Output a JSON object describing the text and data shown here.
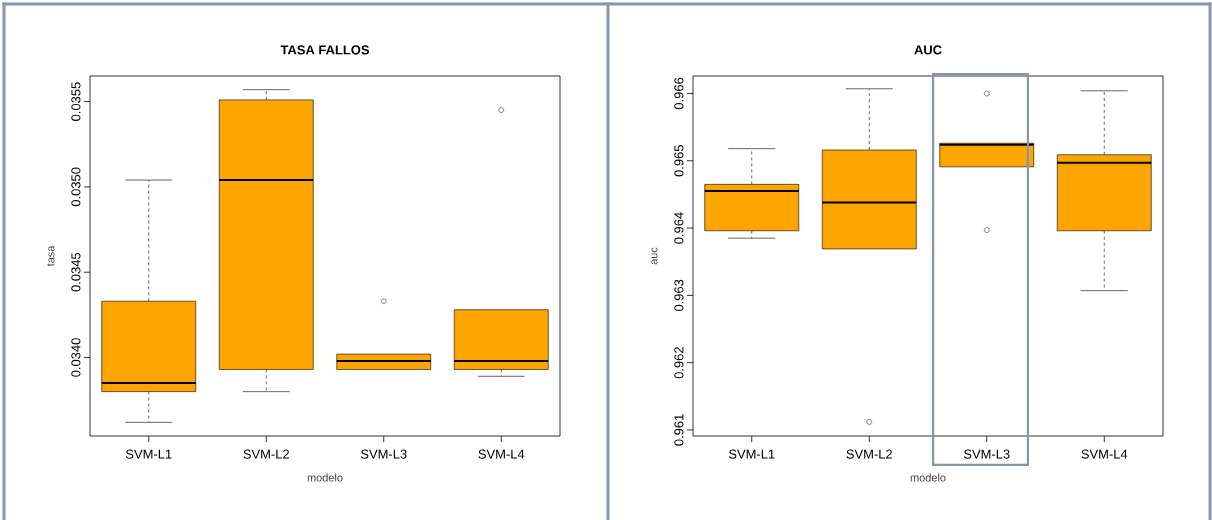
{
  "chart_data": [
    {
      "type": "box",
      "title": "TASA FALLOS",
      "xlabel": "modelo",
      "ylabel": "tasa",
      "categories": [
        "SVM-L1",
        "SVM-L2",
        "SVM-L3",
        "SVM-L4"
      ],
      "color": "#ffa500",
      "ylim": [
        0.03354,
        0.03565
      ],
      "yticks": [
        {
          "value": 0.034,
          "label": "0.0340"
        },
        {
          "value": 0.0345,
          "label": "0.0345"
        },
        {
          "value": 0.035,
          "label": "0.0350"
        },
        {
          "value": 0.0355,
          "label": "0.0355"
        }
      ],
      "boxes": [
        {
          "low": 0.03362,
          "q1": 0.0338,
          "median": 0.03385,
          "q3": 0.03433,
          "high": 0.03504
        },
        {
          "low": 0.0338,
          "q1": 0.03393,
          "median": 0.03504,
          "q3": 0.03551,
          "high": 0.03557
        },
        {
          "low": 0.03393,
          "q1": 0.03393,
          "median": 0.03398,
          "q3": 0.03402,
          "high": 0.03402,
          "outliers": [
            0.03433
          ]
        },
        {
          "low": 0.03389,
          "q1": 0.03393,
          "median": 0.03398,
          "q3": 0.03428,
          "high": 0.03428,
          "outliers": [
            0.03545
          ]
        }
      ]
    },
    {
      "type": "box",
      "title": "AUC",
      "xlabel": "modelo",
      "ylabel": "auc",
      "categories": [
        "SVM-L1",
        "SVM-L2",
        "SVM-L3",
        "SVM-L4"
      ],
      "color": "#ffa500",
      "ylim": [
        0.96091,
        0.96626
      ],
      "yticks": [
        0.961,
        0.962,
        0.963,
        0.964,
        0.965,
        0.966
      ],
      "boxes": [
        {
          "low": 0.96385,
          "q1": 0.96396,
          "median": 0.96455,
          "q3": 0.96465,
          "high": 0.96518
        },
        {
          "low": 0.96369,
          "q1": 0.96369,
          "median": 0.96438,
          "q3": 0.96516,
          "high": 0.96607,
          "outliers": [
            0.96112
          ]
        },
        {
          "low": 0.96491,
          "q1": 0.96491,
          "median": 0.96524,
          "q3": 0.96526,
          "high": 0.96526,
          "outliers": [
            0.966,
            0.96397
          ]
        },
        {
          "low": 0.96307,
          "q1": 0.96396,
          "median": 0.96497,
          "q3": 0.96509,
          "high": 0.96604
        }
      ]
    }
  ]
}
